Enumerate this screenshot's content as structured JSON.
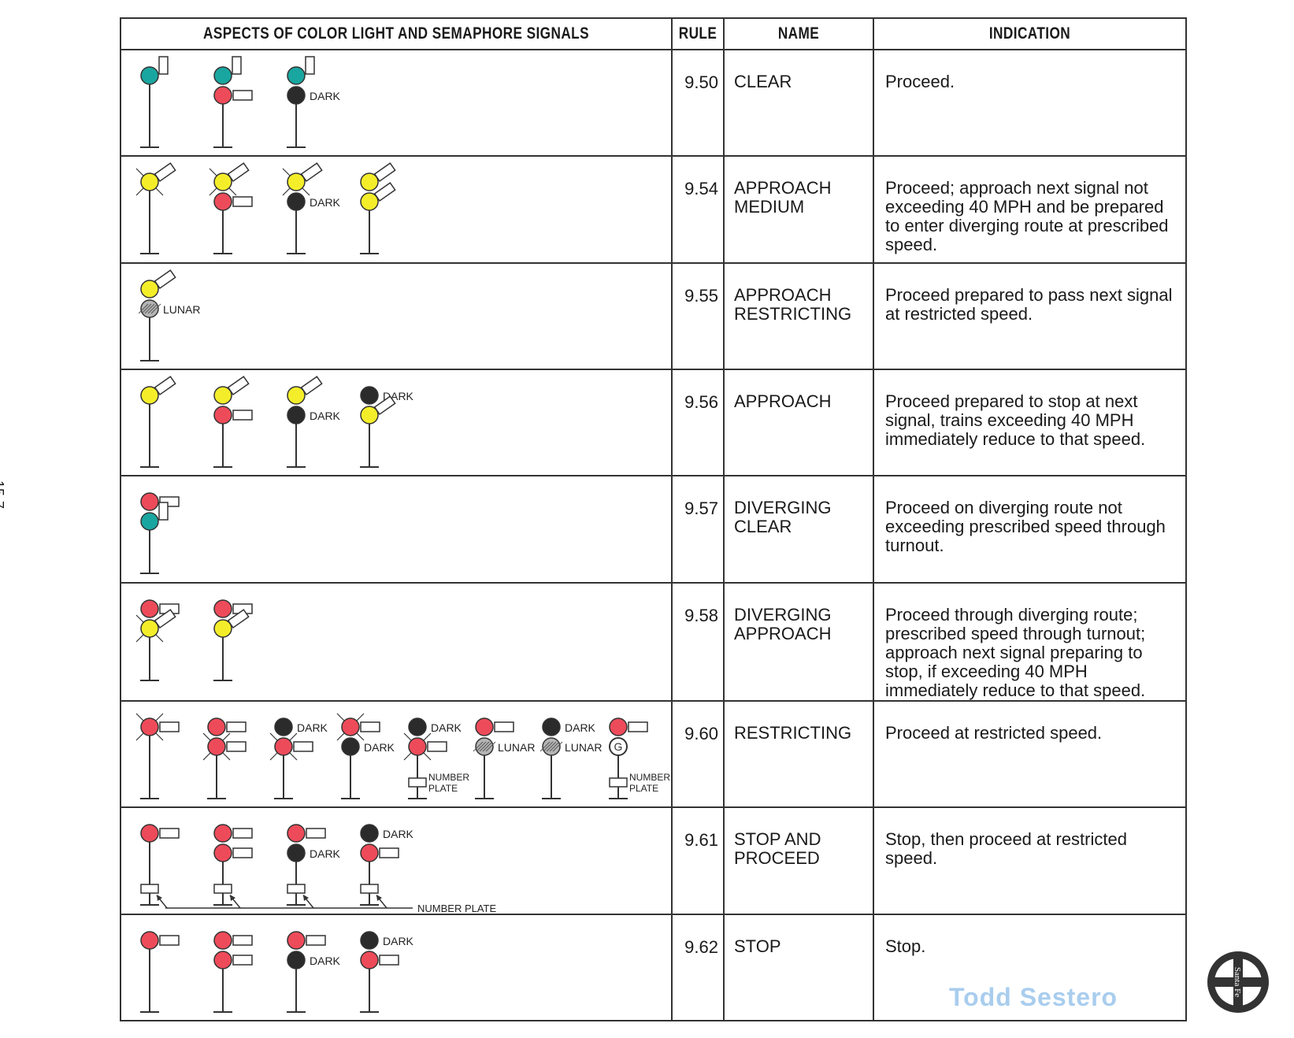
{
  "page_number": "15-7",
  "headers": {
    "aspects": "ASPECTS OF COLOR LIGHT AND SEMAPHORE SIGNALS",
    "rule": "RULE",
    "name": "NAME",
    "indication": "INDICATION"
  },
  "colors": {
    "green": "#1aa6a0",
    "red": "#ee4b5a",
    "yellow": "#f4ee2a",
    "dark": "#2b2b2b",
    "lunar": "#b5b5b5",
    "watermark": "#a9cdee"
  },
  "rows": [
    {
      "rule": "9.50",
      "name": "CLEAR",
      "indication": "Proceed.",
      "signals": [
        {
          "lights": [
            {
              "c": "green",
              "arm": "vertical"
            }
          ]
        },
        {
          "lights": [
            {
              "c": "green",
              "arm": "vertical"
            },
            {
              "c": "red",
              "arm": "horizontal"
            }
          ]
        },
        {
          "lights": [
            {
              "c": "green",
              "arm": "vertical"
            },
            {
              "c": "dark",
              "label": "DARK"
            }
          ]
        }
      ]
    },
    {
      "rule": "9.54",
      "name": "APPROACH\nMEDIUM",
      "indication": "Proceed; approach next signal not exceeding 40 MPH and be prepared to enter diverging route at prescribed speed.",
      "signals": [
        {
          "lights": [
            {
              "c": "yellow",
              "arm": "diagonal",
              "flash": true
            }
          ]
        },
        {
          "lights": [
            {
              "c": "yellow",
              "arm": "diagonal",
              "flash": true
            },
            {
              "c": "red",
              "arm": "horizontal"
            }
          ]
        },
        {
          "lights": [
            {
              "c": "yellow",
              "arm": "diagonal",
              "flash": true
            },
            {
              "c": "dark",
              "label": "DARK"
            }
          ]
        },
        {
          "lights": [
            {
              "c": "yellow",
              "arm": "diagonal"
            },
            {
              "c": "yellow",
              "arm": "diagonal"
            }
          ]
        }
      ]
    },
    {
      "rule": "9.55",
      "name": "APPROACH\nRESTRICTING",
      "indication": "Proceed prepared to pass next signal at restricted speed.",
      "signals": [
        {
          "lights": [
            {
              "c": "yellow",
              "arm": "diagonal"
            },
            {
              "c": "lunar",
              "label": "LUNAR"
            }
          ]
        }
      ]
    },
    {
      "rule": "9.56",
      "name": "APPROACH",
      "indication": "Proceed prepared to stop at next signal, trains exceeding 40 MPH immediately reduce to that speed.",
      "signals": [
        {
          "lights": [
            {
              "c": "yellow",
              "arm": "diagonal"
            }
          ]
        },
        {
          "lights": [
            {
              "c": "yellow",
              "arm": "diagonal"
            },
            {
              "c": "red",
              "arm": "horizontal"
            }
          ]
        },
        {
          "lights": [
            {
              "c": "yellow",
              "arm": "diagonal"
            },
            {
              "c": "dark",
              "label": "DARK"
            }
          ]
        },
        {
          "lights": [
            {
              "c": "dark",
              "label": "DARK"
            },
            {
              "c": "yellow",
              "arm": "diagonal"
            }
          ]
        }
      ]
    },
    {
      "rule": "9.57",
      "name": "DIVERGING\nCLEAR",
      "indication": "Proceed on diverging route not exceeding prescribed speed through turnout.",
      "signals": [
        {
          "lights": [
            {
              "c": "red",
              "arm": "horizontal"
            },
            {
              "c": "green",
              "arm": "vertical"
            }
          ]
        }
      ]
    },
    {
      "rule": "9.58",
      "name": "DIVERGING\nAPPROACH",
      "indication": "Proceed through diverging route; prescribed speed through turnout; approach next signal preparing to stop, if exceeding 40 MPH immediately reduce to that speed.",
      "signals": [
        {
          "lights": [
            {
              "c": "red",
              "arm": "horizontal"
            },
            {
              "c": "yellow",
              "arm": "diagonal",
              "flash": true
            }
          ]
        },
        {
          "lights": [
            {
              "c": "red",
              "arm": "horizontal"
            },
            {
              "c": "yellow",
              "arm": "diagonal"
            }
          ]
        }
      ]
    },
    {
      "rule": "9.60",
      "name": "RESTRICTING",
      "indication": "Proceed at restricted speed.",
      "signals": [
        {
          "lights": [
            {
              "c": "red",
              "arm": "horizontal",
              "flash": true
            }
          ]
        },
        {
          "lights": [
            {
              "c": "red",
              "arm": "horizontal"
            },
            {
              "c": "red",
              "arm": "horizontal",
              "flash": true
            }
          ]
        },
        {
          "lights": [
            {
              "c": "dark",
              "label": "DARK"
            },
            {
              "c": "red",
              "arm": "horizontal",
              "flash": true
            }
          ]
        },
        {
          "lights": [
            {
              "c": "red",
              "arm": "horizontal",
              "flash": true
            },
            {
              "c": "dark",
              "label": "DARK"
            }
          ]
        },
        {
          "lights": [
            {
              "c": "dark",
              "label": "DARK"
            },
            {
              "c": "red",
              "arm": "horizontal",
              "flash": true
            }
          ],
          "plate": "NUMBER PLATE"
        },
        {
          "lights": [
            {
              "c": "red",
              "arm": "horizontal"
            },
            {
              "c": "lunar",
              "label": "LUNAR"
            }
          ]
        },
        {
          "lights": [
            {
              "c": "dark",
              "label": "DARK"
            },
            {
              "c": "lunar",
              "label": "LUNAR"
            }
          ]
        },
        {
          "lights": [
            {
              "c": "red",
              "arm": "horizontal"
            },
            {
              "c": "g_marker",
              "mark": "G"
            }
          ],
          "plate": "NUMBER PLATE"
        }
      ]
    },
    {
      "rule": "9.61",
      "name": "STOP AND\nPROCEED",
      "indication": "Stop, then proceed at restricted speed.",
      "plate_note": "NUMBER PLATE",
      "signals": [
        {
          "lights": [
            {
              "c": "red",
              "arm": "horizontal"
            }
          ],
          "plate_mark": true
        },
        {
          "lights": [
            {
              "c": "red",
              "arm": "horizontal"
            },
            {
              "c": "red",
              "arm": "horizontal"
            }
          ],
          "plate_mark": true
        },
        {
          "lights": [
            {
              "c": "red",
              "arm": "horizontal"
            },
            {
              "c": "dark",
              "label": "DARK"
            }
          ],
          "plate_mark": true
        },
        {
          "lights": [
            {
              "c": "dark",
              "label": "DARK"
            },
            {
              "c": "red",
              "arm": "horizontal"
            }
          ],
          "plate_mark": true
        }
      ]
    },
    {
      "rule": "9.62",
      "name": "STOP",
      "indication": "Stop.",
      "signals": [
        {
          "lights": [
            {
              "c": "red",
              "arm": "horizontal"
            }
          ]
        },
        {
          "lights": [
            {
              "c": "red",
              "arm": "horizontal"
            },
            {
              "c": "red",
              "arm": "horizontal"
            }
          ]
        },
        {
          "lights": [
            {
              "c": "red",
              "arm": "horizontal"
            },
            {
              "c": "dark",
              "label": "DARK"
            }
          ]
        },
        {
          "lights": [
            {
              "c": "dark",
              "label": "DARK"
            },
            {
              "c": "red",
              "arm": "horizontal"
            }
          ]
        }
      ]
    }
  ],
  "watermark": "Todd Sestero",
  "logo_text": "Santa Fe"
}
